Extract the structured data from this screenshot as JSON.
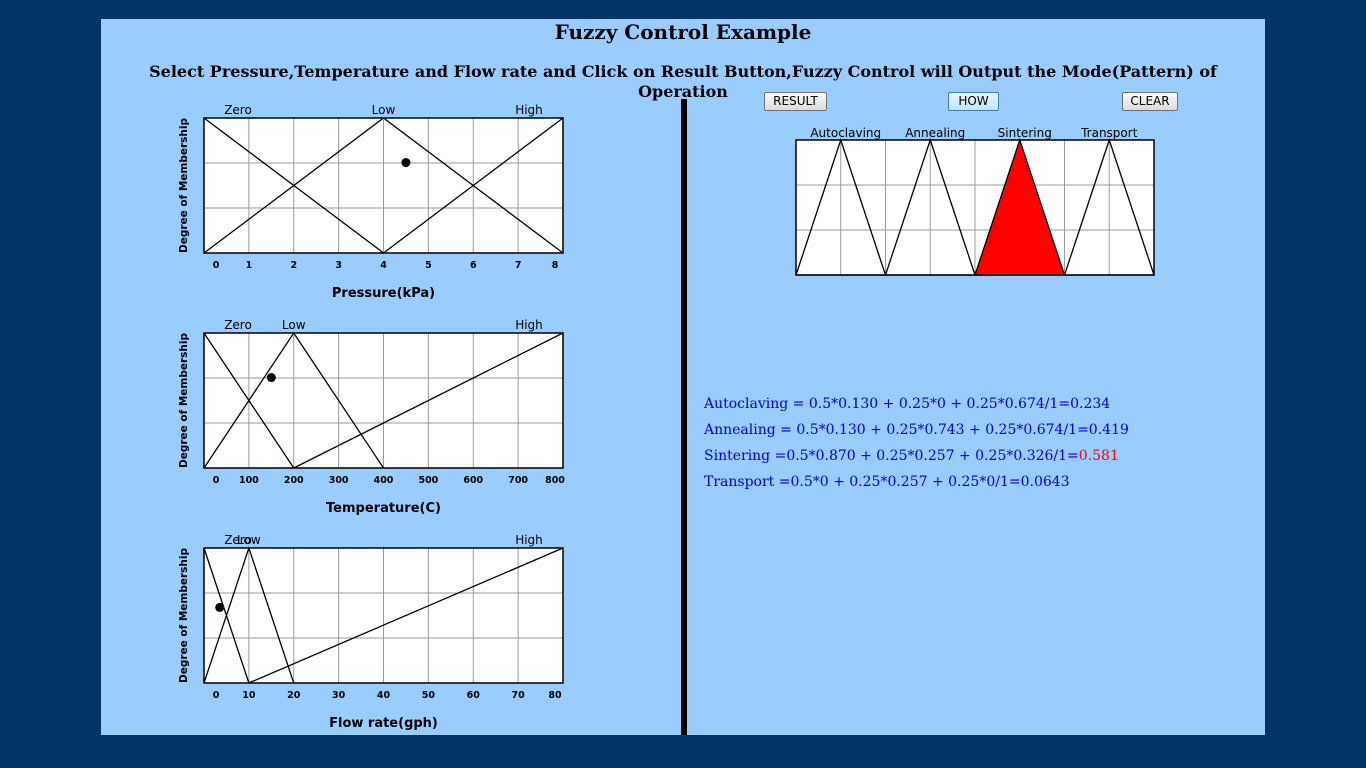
{
  "header": {
    "title": "Fuzzy Control Example",
    "instruction": "Select Pressure,Temperature and Flow rate and Click on Result Button,Fuzzy Control will Output the Mode(Pattern) of Operation"
  },
  "buttons": {
    "result": "RESULT",
    "how": "HOW",
    "clear": "CLEAR"
  },
  "colors": {
    "background": "#003366",
    "panel": "#99ccff",
    "formula_text": "#0000cc",
    "highlight": "#ff0000",
    "active_set_fill": "#ff0000"
  },
  "chart_data": [
    {
      "type": "line",
      "xlabel": "Pressure(kPa)",
      "ylabel": "Degree of Membership",
      "xlim": [
        0,
        8
      ],
      "ylim": [
        0,
        1
      ],
      "x_ticks": [
        "0",
        "1",
        "2",
        "3",
        "4",
        "5",
        "6",
        "7",
        "8"
      ],
      "set_labels": [
        "Zero",
        "Low",
        "High"
      ],
      "series": [
        {
          "name": "Zero",
          "x": [
            0,
            4
          ],
          "y": [
            1,
            0
          ]
        },
        {
          "name": "Low",
          "x": [
            0,
            4,
            8
          ],
          "y": [
            0,
            1,
            0
          ]
        },
        {
          "name": "High",
          "x": [
            4,
            8
          ],
          "y": [
            0,
            1
          ]
        }
      ],
      "selected_point": {
        "x": 4.5,
        "y": 0.67
      }
    },
    {
      "type": "line",
      "xlabel": "Temperature(C)",
      "ylabel": "Degree of Membership",
      "xlim": [
        0,
        800
      ],
      "ylim": [
        0,
        1
      ],
      "x_ticks": [
        "0",
        "100",
        "200",
        "300",
        "400",
        "500",
        "600",
        "700",
        "800"
      ],
      "set_labels": [
        "Zero",
        "Low",
        "High"
      ],
      "series": [
        {
          "name": "Zero",
          "x": [
            0,
            200
          ],
          "y": [
            1,
            0
          ]
        },
        {
          "name": "Low",
          "x": [
            0,
            200,
            400
          ],
          "y": [
            0,
            1,
            0
          ]
        },
        {
          "name": "High",
          "x": [
            200,
            800
          ],
          "y": [
            0,
            1
          ]
        }
      ],
      "selected_point": {
        "x": 150,
        "y": 0.67
      }
    },
    {
      "type": "line",
      "xlabel": "Flow rate(gph)",
      "ylabel": "Degree of Membership",
      "xlim": [
        0,
        80
      ],
      "ylim": [
        0,
        1
      ],
      "x_ticks": [
        "0",
        "10",
        "20",
        "30",
        "40",
        "50",
        "60",
        "70",
        "80"
      ],
      "set_labels": [
        "Zero",
        "Low",
        "High"
      ],
      "series": [
        {
          "name": "Zero",
          "x": [
            0,
            10
          ],
          "y": [
            1,
            0
          ]
        },
        {
          "name": "Low",
          "x": [
            0,
            10,
            20
          ],
          "y": [
            0,
            1,
            0
          ]
        },
        {
          "name": "High",
          "x": [
            10,
            80
          ],
          "y": [
            0,
            1
          ]
        }
      ],
      "selected_point": {
        "x": 3.5,
        "y": 0.56
      }
    },
    {
      "type": "area",
      "xlim": [
        0,
        8
      ],
      "ylim": [
        0,
        1
      ],
      "categories": [
        "Autoclaving",
        "Annealing",
        "Sintering",
        "Transport"
      ],
      "series": [
        {
          "name": "Autoclaving",
          "x": [
            0,
            1,
            2
          ],
          "y": [
            0,
            1,
            0
          ]
        },
        {
          "name": "Annealing",
          "x": [
            2,
            3,
            4
          ],
          "y": [
            0,
            1,
            0
          ]
        },
        {
          "name": "Sintering",
          "x": [
            4,
            5,
            6
          ],
          "y": [
            0,
            1,
            0
          ]
        },
        {
          "name": "Transport",
          "x": [
            6,
            7,
            8
          ],
          "y": [
            0,
            1,
            0
          ]
        }
      ],
      "highlighted": "Sintering"
    }
  ],
  "results": [
    {
      "text": "Autoclaving = 0.5*0.130 + 0.25*0 + 0.25*0.674/1=0.234",
      "value": ""
    },
    {
      "text": "Annealing = 0.5*0.130 + 0.25*0.743 + 0.25*0.674/1=0.419",
      "value": ""
    },
    {
      "text": "Sintering =0.5*0.870 + 0.25*0.257 + 0.25*0.326/1=",
      "value": "0.581"
    },
    {
      "text": "Transport =0.5*0 + 0.25*0.257 + 0.25*0/1=0.0643",
      "value": ""
    }
  ]
}
